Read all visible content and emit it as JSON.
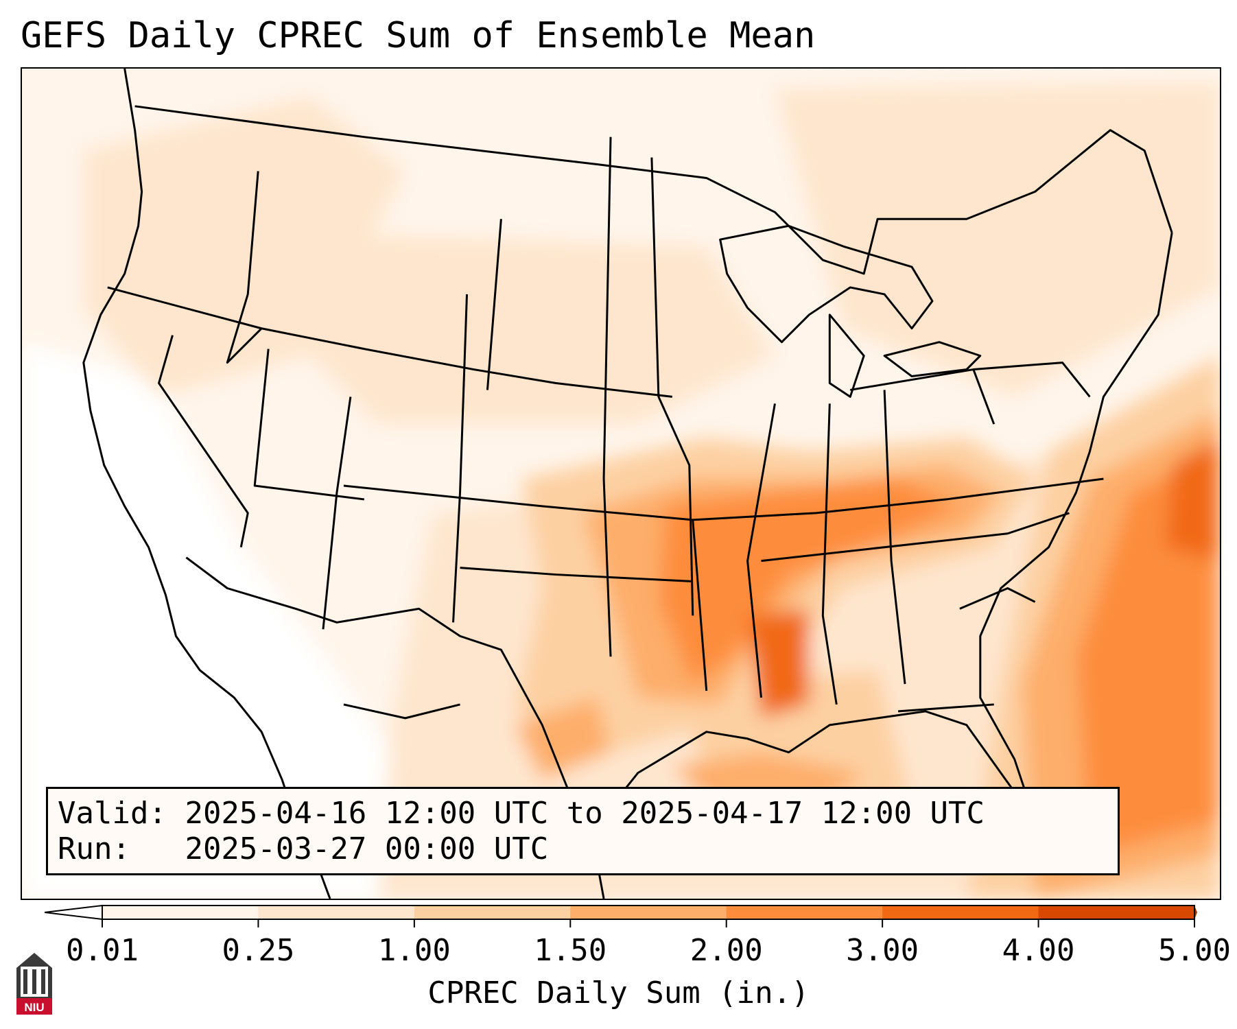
{
  "title": "GEFS Daily CPREC Sum of Ensemble Mean",
  "valid_box": {
    "valid_label": "Valid:",
    "valid_value": "2025-04-16 12:00 UTC to 2025-04-17 12:00 UTC",
    "run_label": "Run:",
    "run_value": "2025-03-27 00:00 UTC"
  },
  "colorbar": {
    "label": "CPREC Daily Sum (in.)",
    "ticks": [
      "0.01",
      "0.25",
      "1.00",
      "1.50",
      "2.00",
      "3.00",
      "4.00",
      "5.00"
    ],
    "colors": [
      "#fff5eb",
      "#fee6ce",
      "#fdd0a2",
      "#fdae6b",
      "#fd8d3c",
      "#f16913",
      "#d94801"
    ],
    "under_color": "#ffffff",
    "over_color": "#a63603"
  },
  "logo": {
    "text": "NIU",
    "icon": "niu-building-icon"
  },
  "map": {
    "region": "Continental United States",
    "icon": "precipitation-map"
  }
}
